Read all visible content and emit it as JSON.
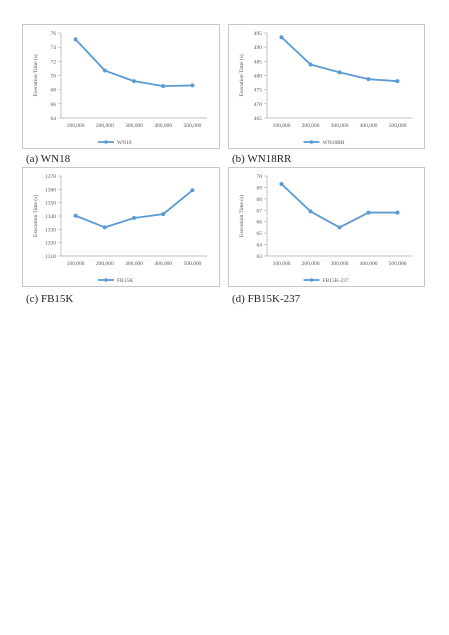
{
  "chart_data": [
    {
      "type": "line",
      "categories": [
        "100,000",
        "200,000",
        "300,000",
        "400,000",
        "500,000"
      ],
      "series": [
        {
          "name": "WN18",
          "values": [
            75.1,
            70.7,
            69.2,
            68.5,
            68.6
          ]
        }
      ],
      "ylabel": "Execution Time (s)",
      "ylim": [
        64,
        76
      ],
      "yticks": [
        "64",
        "66",
        "68",
        "70",
        "72",
        "74",
        "76"
      ],
      "legend": "bottom",
      "color": "#5b9bd5",
      "caption": "(a) WN18"
    },
    {
      "type": "line",
      "categories": [
        "100,000",
        "200,000",
        "300,000",
        "400,000",
        "500,000"
      ],
      "series": [
        {
          "name": "WN18RR",
          "values": [
            493.5,
            483.9,
            481.1,
            478.7,
            478.0
          ]
        }
      ],
      "ylabel": "Execution Time (s)",
      "ylim": [
        465,
        495
      ],
      "yticks": [
        "465",
        "470",
        "475",
        "480",
        "485",
        "490",
        "495"
      ],
      "legend": "bottom",
      "color": "#5b9bd5",
      "caption": "(b) WN18RR"
    },
    {
      "type": "line",
      "categories": [
        "100,000",
        "200,000",
        "300,000",
        "400,000",
        "500,000"
      ],
      "series": [
        {
          "name": "FB15K",
          "values": [
            1340.2,
            1331.5,
            1338.5,
            1341.4,
            1359.3
          ]
        }
      ],
      "ylabel": "Execution Time (s)",
      "ylim": [
        1310,
        1370
      ],
      "yticks": [
        "1310",
        "1320",
        "1330",
        "1340",
        "1350",
        "1360",
        "1370"
      ],
      "legend": "bottom",
      "color": "#5b9bd5",
      "caption": "(c) FB15K"
    },
    {
      "type": "line",
      "categories": [
        "100,000",
        "200,000",
        "300,000",
        "400,000",
        "500,000"
      ],
      "series": [
        {
          "name": "FB15K-237",
          "values": [
            69.3,
            66.9,
            65.5,
            66.8,
            66.8
          ]
        }
      ],
      "ylabel": "Execution Time (s)",
      "ylim": [
        63,
        70
      ],
      "yticks": [
        "63",
        "64",
        "65",
        "66",
        "67",
        "68",
        "69",
        "70"
      ],
      "legend": "bottom",
      "color": "#5b9bd5",
      "caption": "(d) FB15K-237"
    }
  ]
}
